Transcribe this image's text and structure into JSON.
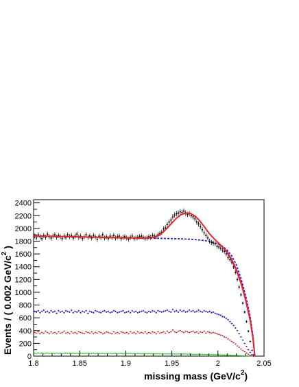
{
  "chart_data": {
    "type": "scatter",
    "xlabel": "missing mass (GeV/c",
    "xlabel_sup": "2",
    "xlabel_close": ")",
    "ylabel": "Events / ( 0.002 GeV/c",
    "ylabel_sup": "2",
    "ylabel_close": " )",
    "xlim": [
      1.8,
      2.05
    ],
    "ylim": [
      0,
      2450
    ],
    "x_ticks": [
      1.8,
      1.85,
      1.9,
      1.95,
      2,
      2.05
    ],
    "x_tick_labels": [
      "1.8",
      "1.85",
      "1.9",
      "1.95",
      "2",
      "2.05"
    ],
    "y_ticks": [
      0,
      200,
      400,
      600,
      800,
      1000,
      1200,
      1400,
      1600,
      1800,
      2000,
      2200,
      2400
    ],
    "y_tick_labels": [
      "0",
      "200",
      "400",
      "600",
      "800",
      "1000",
      "1200",
      "1400",
      "1600",
      "1800",
      "2000",
      "2200",
      "2400"
    ],
    "grid": false,
    "legend": "none",
    "series": [
      {
        "kind": "data-points",
        "color": "#000000",
        "x": [
          1.801,
          1.803,
          1.805,
          1.807,
          1.809,
          1.811,
          1.813,
          1.815,
          1.817,
          1.819,
          1.821,
          1.823,
          1.825,
          1.827,
          1.829,
          1.831,
          1.833,
          1.835,
          1.837,
          1.839,
          1.841,
          1.843,
          1.845,
          1.847,
          1.849,
          1.851,
          1.853,
          1.855,
          1.857,
          1.859,
          1.861,
          1.863,
          1.865,
          1.867,
          1.869,
          1.871,
          1.873,
          1.875,
          1.877,
          1.879,
          1.881,
          1.883,
          1.885,
          1.887,
          1.889,
          1.891,
          1.893,
          1.895,
          1.897,
          1.899,
          1.901,
          1.903,
          1.905,
          1.907,
          1.909,
          1.911,
          1.913,
          1.915,
          1.917,
          1.919,
          1.921,
          1.923,
          1.925,
          1.927,
          1.929,
          1.931,
          1.933,
          1.935,
          1.937,
          1.939,
          1.941,
          1.943,
          1.945,
          1.947,
          1.949,
          1.951,
          1.953,
          1.955,
          1.957,
          1.959,
          1.961,
          1.963,
          1.965,
          1.967,
          1.969,
          1.971,
          1.973,
          1.975,
          1.977,
          1.979,
          1.981,
          1.983,
          1.985,
          1.987,
          1.989,
          1.991,
          1.993,
          1.995,
          1.997,
          1.999,
          2.001,
          2.003,
          2.005,
          2.007,
          2.009,
          2.011,
          2.013,
          2.015,
          2.017,
          2.019,
          2.021,
          2.023,
          2.025,
          2.027,
          2.029,
          2.031,
          2.033,
          2.035,
          2.037,
          2.039
        ],
        "y": [
          1880,
          1850,
          1900,
          1870,
          1840,
          1890,
          1860,
          1910,
          1870,
          1850,
          1880,
          1900,
          1860,
          1890,
          1870,
          1840,
          1880,
          1860,
          1900,
          1870,
          1890,
          1850,
          1880,
          1910,
          1860,
          1880,
          1840,
          1870,
          1900,
          1860,
          1880,
          1850,
          1890,
          1870,
          1830,
          1880,
          1860,
          1900,
          1850,
          1870,
          1840,
          1880,
          1860,
          1890,
          1850,
          1870,
          1880,
          1840,
          1860,
          1870,
          1850,
          1830,
          1860,
          1880,
          1840,
          1850,
          1860,
          1870,
          1880,
          1860,
          1840,
          1850,
          1870,
          1860,
          1890,
          1880,
          1870,
          1900,
          1920,
          1940,
          1990,
          2010,
          2060,
          2100,
          2130,
          2180,
          2210,
          2230,
          2240,
          2260,
          2250,
          2270,
          2240,
          2220,
          2230,
          2200,
          2180,
          2150,
          2100,
          2070,
          2030,
          1980,
          1930,
          1890,
          1850,
          1800,
          1780,
          1770,
          1760,
          1720,
          1710,
          1690,
          1660,
          1640,
          1600,
          1540,
          1510,
          1470,
          1400,
          1310,
          1200,
          1080,
          960,
          830,
          690,
          540,
          390,
          230,
          90,
          20
        ]
      },
      {
        "kind": "blue-points",
        "color": "#1a1acc",
        "x": [
          1.801,
          1.803,
          1.805,
          1.807,
          1.809,
          1.811,
          1.813,
          1.815,
          1.817,
          1.819,
          1.821,
          1.823,
          1.825,
          1.827,
          1.829,
          1.831,
          1.833,
          1.835,
          1.837,
          1.839,
          1.841,
          1.843,
          1.845,
          1.847,
          1.849,
          1.851,
          1.853,
          1.855,
          1.857,
          1.859,
          1.861,
          1.863,
          1.865,
          1.867,
          1.869,
          1.871,
          1.873,
          1.875,
          1.877,
          1.879,
          1.881,
          1.883,
          1.885,
          1.887,
          1.889,
          1.891,
          1.893,
          1.895,
          1.897,
          1.899,
          1.901,
          1.903,
          1.905,
          1.907,
          1.909,
          1.911,
          1.913,
          1.915,
          1.917,
          1.919,
          1.921,
          1.923,
          1.925,
          1.927,
          1.929,
          1.931,
          1.933,
          1.935,
          1.937,
          1.939,
          1.941,
          1.943,
          1.945,
          1.947,
          1.949,
          1.951,
          1.953,
          1.955,
          1.957,
          1.959,
          1.961,
          1.963,
          1.965,
          1.967,
          1.969,
          1.971,
          1.973,
          1.975,
          1.977,
          1.979,
          1.981,
          1.983,
          1.985,
          1.987,
          1.989,
          1.991,
          1.993,
          1.995,
          1.997,
          1.999,
          2.001,
          2.003,
          2.005,
          2.007,
          2.009,
          2.011,
          2.013,
          2.015,
          2.017,
          2.019,
          2.021,
          2.023,
          2.025,
          2.027,
          2.029,
          2.031,
          2.033,
          2.035,
          2.037,
          2.039
        ],
        "y": [
          700,
          690,
          710,
          680,
          700,
          720,
          690,
          700,
          680,
          710,
          690,
          700,
          670,
          710,
          690,
          700,
          680,
          710,
          700,
          690,
          720,
          680,
          700,
          690,
          710,
          680,
          700,
          690,
          710,
          670,
          700,
          690,
          680,
          710,
          700,
          690,
          680,
          700,
          710,
          690,
          700,
          680,
          690,
          710,
          700,
          680,
          690,
          700,
          710,
          680,
          690,
          700,
          680,
          710,
          690,
          700,
          680,
          690,
          700,
          710,
          690,
          680,
          700,
          690,
          710,
          700,
          680,
          710,
          700,
          690,
          700,
          710,
          720,
          700,
          690,
          730,
          700,
          710,
          690,
          720,
          700,
          710,
          690,
          700,
          720,
          700,
          710,
          690,
          700,
          720,
          700,
          690,
          710,
          700,
          690,
          700,
          680,
          690,
          670,
          660,
          650,
          640,
          620,
          610,
          590,
          570,
          540,
          510,
          480,
          440,
          400,
          350,
          300,
          250,
          200,
          150,
          100,
          60,
          25,
          5
        ]
      },
      {
        "kind": "red-points",
        "color": "#cc1a1a",
        "x": [
          1.801,
          1.803,
          1.805,
          1.807,
          1.809,
          1.811,
          1.813,
          1.815,
          1.817,
          1.819,
          1.821,
          1.823,
          1.825,
          1.827,
          1.829,
          1.831,
          1.833,
          1.835,
          1.837,
          1.839,
          1.841,
          1.843,
          1.845,
          1.847,
          1.849,
          1.851,
          1.853,
          1.855,
          1.857,
          1.859,
          1.861,
          1.863,
          1.865,
          1.867,
          1.869,
          1.871,
          1.873,
          1.875,
          1.877,
          1.879,
          1.881,
          1.883,
          1.885,
          1.887,
          1.889,
          1.891,
          1.893,
          1.895,
          1.897,
          1.899,
          1.901,
          1.903,
          1.905,
          1.907,
          1.909,
          1.911,
          1.913,
          1.915,
          1.917,
          1.919,
          1.921,
          1.923,
          1.925,
          1.927,
          1.929,
          1.931,
          1.933,
          1.935,
          1.937,
          1.939,
          1.941,
          1.943,
          1.945,
          1.947,
          1.949,
          1.951,
          1.953,
          1.955,
          1.957,
          1.959,
          1.961,
          1.963,
          1.965,
          1.967,
          1.969,
          1.971,
          1.973,
          1.975,
          1.977,
          1.979,
          1.981,
          1.983,
          1.985,
          1.987,
          1.989,
          1.991,
          1.993,
          1.995,
          1.997,
          1.999,
          2.001,
          2.003,
          2.005,
          2.007,
          2.009,
          2.011,
          2.013,
          2.015,
          2.017,
          2.019,
          2.021,
          2.023,
          2.025,
          2.027,
          2.029,
          2.031,
          2.033,
          2.035,
          2.037,
          2.039
        ],
        "y": [
          370,
          360,
          380,
          350,
          370,
          360,
          390,
          370,
          350,
          380,
          360,
          370,
          350,
          380,
          360,
          370,
          390,
          360,
          370,
          350,
          380,
          360,
          370,
          350,
          380,
          370,
          360,
          350,
          380,
          370,
          360,
          380,
          350,
          370,
          360,
          380,
          370,
          350,
          360,
          380,
          370,
          360,
          350,
          380,
          360,
          370,
          350,
          380,
          370,
          360,
          370,
          350,
          380,
          360,
          370,
          350,
          380,
          360,
          370,
          360,
          380,
          350,
          370,
          360,
          380,
          370,
          350,
          380,
          360,
          370,
          380,
          360,
          390,
          370,
          380,
          410,
          380,
          370,
          390,
          400,
          380,
          370,
          390,
          380,
          370,
          380,
          390,
          370,
          380,
          360,
          380,
          370,
          390,
          360,
          380,
          370,
          360,
          370,
          360,
          350,
          340,
          330,
          320,
          300,
          290,
          270,
          250,
          230,
          210,
          190,
          160,
          140,
          110,
          90,
          70,
          50,
          30,
          15,
          5,
          0
        ]
      },
      {
        "kind": "green-points",
        "color": "#1acc1a",
        "x": [
          1.801,
          1.803,
          1.805,
          1.807,
          1.809,
          1.811,
          1.813,
          1.815,
          1.817,
          1.819,
          1.821,
          1.823,
          1.825,
          1.827,
          1.829,
          1.831,
          1.833,
          1.835,
          1.837,
          1.839,
          1.841,
          1.843,
          1.845,
          1.847,
          1.849,
          1.851,
          1.853,
          1.855,
          1.857,
          1.859,
          1.861,
          1.863,
          1.865,
          1.867,
          1.869,
          1.871,
          1.873,
          1.875,
          1.877,
          1.879,
          1.881,
          1.883,
          1.885,
          1.887,
          1.889,
          1.891,
          1.893,
          1.895,
          1.897,
          1.899,
          1.901,
          1.903,
          1.905,
          1.907,
          1.909,
          1.911,
          1.913,
          1.915,
          1.917,
          1.919,
          1.921,
          1.923,
          1.925,
          1.927,
          1.929,
          1.931,
          1.933,
          1.935,
          1.937,
          1.939,
          1.941,
          1.943,
          1.945,
          1.947,
          1.949,
          1.951,
          1.953,
          1.955,
          1.957,
          1.959,
          1.961,
          1.963,
          1.965,
          1.967,
          1.969,
          1.971,
          1.973,
          1.975,
          1.977,
          1.979,
          1.981,
          1.983,
          1.985,
          1.987,
          1.989,
          1.991,
          1.993,
          1.995,
          1.997,
          1.999,
          2.001,
          2.003,
          2.005,
          2.007,
          2.009,
          2.011,
          2.013,
          2.015,
          2.017,
          2.019,
          2.021,
          2.023,
          2.025,
          2.027,
          2.029,
          2.031,
          2.033,
          2.035,
          2.037,
          2.039
        ],
        "y": [
          45,
          40,
          50,
          42,
          48,
          38,
          45,
          50,
          40,
          44,
          46,
          40,
          48,
          42,
          45,
          38,
          44,
          47,
          40,
          45,
          42,
          46,
          40,
          44,
          38,
          45,
          42,
          40,
          46,
          44,
          40,
          42,
          45,
          38,
          44,
          41,
          40,
          43,
          38,
          42,
          40,
          44,
          39,
          41,
          43,
          38,
          40,
          42,
          37,
          40,
          41,
          39,
          42,
          37,
          40,
          38,
          41,
          39,
          36,
          40,
          38,
          37,
          40,
          36,
          38,
          37,
          35,
          38,
          36,
          35,
          37,
          34,
          36,
          35,
          33,
          35,
          34,
          32,
          34,
          33,
          31,
          33,
          32,
          30,
          32,
          30,
          29,
          30,
          28,
          29,
          27,
          28,
          26,
          27,
          25,
          24,
          25,
          23,
          22,
          21,
          20,
          19,
          18,
          17,
          16,
          15,
          14,
          12,
          11,
          10,
          9,
          8,
          7,
          6,
          5,
          4,
          3,
          2,
          1,
          0
        ]
      },
      {
        "kind": "total-fit",
        "color": "#ee2222",
        "style": "solid",
        "x": [
          1.8,
          1.81,
          1.82,
          1.83,
          1.84,
          1.85,
          1.86,
          1.87,
          1.88,
          1.89,
          1.9,
          1.91,
          1.92,
          1.93,
          1.935,
          1.94,
          1.945,
          1.95,
          1.955,
          1.96,
          1.965,
          1.97,
          1.975,
          1.98,
          1.985,
          1.99,
          1.995,
          2.0,
          2.005,
          2.01,
          2.015,
          2.02,
          2.025,
          2.03,
          2.035,
          2.038,
          2.04
        ],
        "y": [
          1880,
          1878,
          1876,
          1873,
          1870,
          1867,
          1864,
          1861,
          1858,
          1855,
          1852,
          1850,
          1848,
          1860,
          1885,
          1935,
          2005,
          2085,
          2160,
          2215,
          2240,
          2235,
          2195,
          2125,
          2030,
          1930,
          1850,
          1780,
          1710,
          1620,
          1500,
          1340,
          1140,
          880,
          560,
          280,
          0
        ]
      },
      {
        "kind": "background-fit",
        "color": "#2222dd",
        "style": "dashed",
        "x": [
          1.8,
          1.81,
          1.82,
          1.83,
          1.84,
          1.85,
          1.86,
          1.87,
          1.88,
          1.89,
          1.9,
          1.91,
          1.92,
          1.93,
          1.94,
          1.95,
          1.96,
          1.97,
          1.98,
          1.99,
          2.0,
          2.005,
          2.01,
          2.015,
          2.02,
          2.025,
          2.03,
          2.035,
          2.038,
          2.04
        ],
        "y": [
          1880,
          1878,
          1876,
          1873,
          1870,
          1867,
          1864,
          1861,
          1858,
          1855,
          1852,
          1850,
          1848,
          1846,
          1843,
          1840,
          1836,
          1830,
          1820,
          1800,
          1760,
          1720,
          1660,
          1570,
          1430,
          1220,
          950,
          620,
          320,
          0
        ]
      },
      {
        "kind": "purple-fit",
        "color": "#882288",
        "style": "solid",
        "x": [
          2.0,
          2.005,
          2.01,
          2.015,
          2.02,
          2.025,
          2.03,
          2.035,
          2.038,
          2.04
        ],
        "y": [
          1770,
          1710,
          1630,
          1515,
          1360,
          1160,
          900,
          575,
          290,
          0
        ]
      }
    ]
  }
}
